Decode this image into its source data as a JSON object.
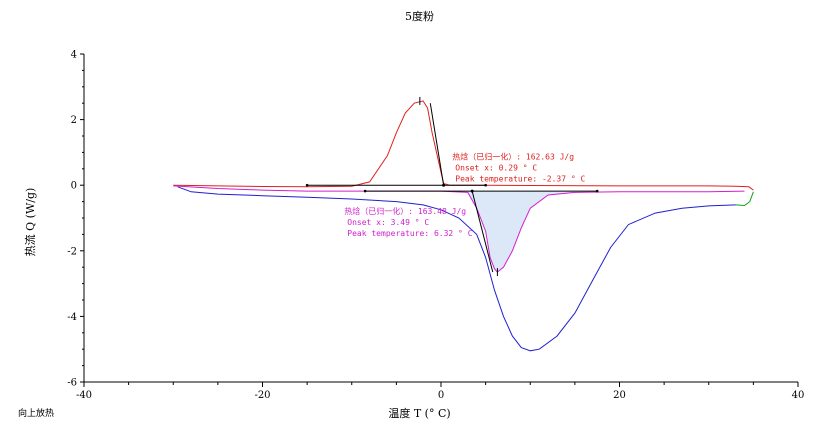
{
  "chart_data": {
    "type": "line",
    "title": "5度粉",
    "xlabel": "温度  T (° C)",
    "ylabel": "热流  Q (W/g)",
    "corner_note": "向上放热",
    "xlim": [
      -40,
      40
    ],
    "ylim": [
      -6,
      4
    ],
    "x_ticks": [
      -40,
      -20,
      0,
      20,
      40
    ],
    "y_ticks": [
      -6,
      -4,
      -2,
      0,
      2,
      4
    ],
    "grid": false,
    "colors": {
      "cooling": "#e02020",
      "heating": "#2020d0",
      "heating_integrated": "#d020d0",
      "end_segment": "#10a010",
      "peak_fill": "#dce8f8",
      "annotation_lines": "#000000"
    },
    "series": [
      {
        "color_key": "cooling",
        "x": [
          -30,
          -25,
          -20,
          -15,
          -10,
          -8,
          -6,
          -5,
          -4,
          -3,
          -2,
          -1.5,
          -1,
          -0.5,
          0,
          0.3,
          1,
          5,
          10,
          20,
          30,
          33,
          34.5,
          35
        ],
        "y": [
          0,
          -0.02,
          -0.04,
          -0.05,
          -0.03,
          0.1,
          0.9,
          1.6,
          2.2,
          2.5,
          2.57,
          2.35,
          1.6,
          1.0,
          0.4,
          0.05,
          0.0,
          0.0,
          -0.01,
          -0.02,
          -0.02,
          -0.03,
          -0.05,
          -0.15
        ]
      },
      {
        "color_key": "heating",
        "x": [
          -29.5,
          -28,
          -25,
          -20,
          -15,
          -10,
          -5,
          -2,
          0,
          2,
          4,
          5,
          6,
          7,
          8,
          9,
          10,
          11,
          13,
          15,
          17,
          19,
          21,
          24,
          27,
          30,
          33
        ],
        "y": [
          -0.05,
          -0.2,
          -0.27,
          -0.32,
          -0.37,
          -0.42,
          -0.5,
          -0.6,
          -0.75,
          -1.0,
          -1.5,
          -2.2,
          -3.2,
          -4.0,
          -4.6,
          -4.95,
          -5.05,
          -5.0,
          -4.6,
          -3.9,
          -2.9,
          -1.9,
          -1.2,
          -0.85,
          -0.7,
          -0.63,
          -0.6
        ]
      },
      {
        "color_key": "heating_integrated",
        "x": [
          -30,
          -25,
          -20,
          -15,
          -10,
          -5,
          0,
          3,
          4,
          5,
          5.5,
          6,
          6.32,
          7,
          8,
          9,
          10,
          12,
          15,
          20,
          25,
          30,
          34
        ],
        "y": [
          -0.02,
          -0.1,
          -0.15,
          -0.18,
          -0.18,
          -0.18,
          -0.18,
          -0.22,
          -0.7,
          -1.4,
          -2.2,
          -2.55,
          -2.65,
          -2.5,
          -2.0,
          -1.3,
          -0.7,
          -0.3,
          -0.22,
          -0.2,
          -0.2,
          -0.2,
          -0.18
        ]
      },
      {
        "color_key": "end_segment",
        "x": [
          33,
          34,
          34.6,
          35
        ],
        "y": [
          -0.6,
          -0.62,
          -0.5,
          -0.2
        ]
      }
    ],
    "annotations": [
      {
        "color_key": "cooling",
        "lines": [
          "热焓（已归一化）: 162.63 J/g",
          "Onset x: 0.29 ° C",
          "Peak temperature: -2.37 ° C"
        ],
        "anchor": [
          1.6,
          0.78
        ],
        "baseline_x": [
          -15,
          5
        ],
        "baseline_y": 0.0,
        "onset": [
          0.29,
          0.0
        ],
        "peak": [
          -2.37,
          2.57
        ],
        "tangent": [
          [
            -1.2,
            2.5
          ],
          [
            0.29,
            0.0
          ]
        ]
      },
      {
        "color_key": "heating_integrated",
        "lines": [
          "热焓（已归一化）: 163.48 J/g",
          "Onset x: 3.49 ° C",
          "Peak temperature: 6.32 ° C"
        ],
        "anchor": [
          -10.5,
          -0.88
        ],
        "baseline_x": [
          -8.5,
          17.5
        ],
        "baseline_y": -0.18,
        "onset": [
          3.49,
          -0.18
        ],
        "peak": [
          6.32,
          -2.65
        ],
        "tangent": [
          [
            3.49,
            -0.18
          ],
          [
            5.8,
            -2.65
          ]
        ]
      }
    ]
  }
}
